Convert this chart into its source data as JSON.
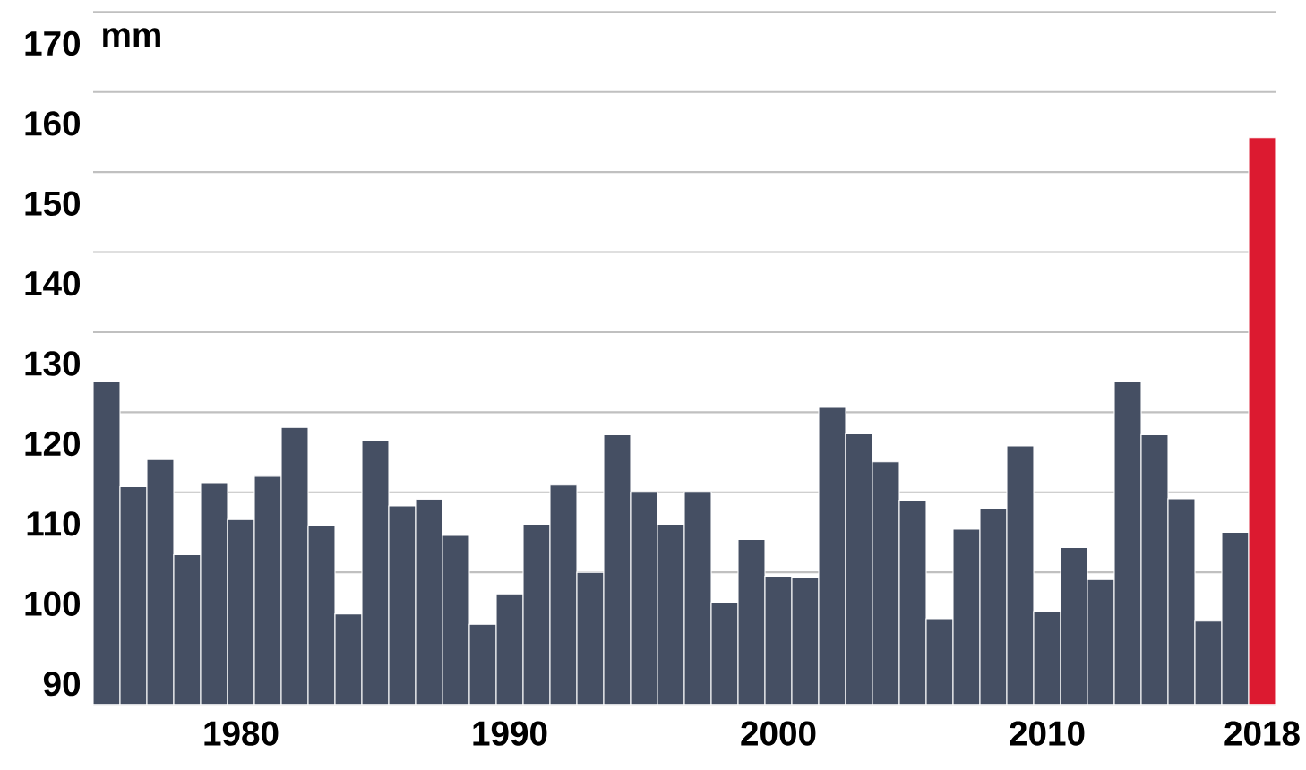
{
  "chart_data": {
    "type": "bar",
    "ylabel": "mm",
    "categories": [
      null,
      null,
      null,
      null,
      null,
      "1980",
      null,
      null,
      null,
      null,
      null,
      null,
      null,
      null,
      null,
      "1990",
      null,
      null,
      null,
      null,
      null,
      null,
      null,
      null,
      null,
      "2000",
      null,
      null,
      null,
      null,
      null,
      null,
      null,
      null,
      null,
      "2010",
      null,
      null,
      null,
      null,
      null,
      null,
      null,
      "2018"
    ],
    "values": [
      123.8,
      110.7,
      114.1,
      102.2,
      111.1,
      106.6,
      112.0,
      118.1,
      105.8,
      94.8,
      116.4,
      108.3,
      109.1,
      104.6,
      93.5,
      97.3,
      106.0,
      110.9,
      100.0,
      117.2,
      110.0,
      106.0,
      110.0,
      96.2,
      104.1,
      99.5,
      99.3,
      120.6,
      117.3,
      113.8,
      108.9,
      94.2,
      105.4,
      108.0,
      115.8,
      95.1,
      103.1,
      99.1,
      123.8,
      117.2,
      109.2,
      93.9,
      105.0,
      154.3
    ],
    "colors": [
      "#454f63",
      "#454f63",
      "#454f63",
      "#454f63",
      "#454f63",
      "#454f63",
      "#454f63",
      "#454f63",
      "#454f63",
      "#454f63",
      "#454f63",
      "#454f63",
      "#454f63",
      "#454f63",
      "#454f63",
      "#454f63",
      "#454f63",
      "#454f63",
      "#454f63",
      "#454f63",
      "#454f63",
      "#454f63",
      "#454f63",
      "#454f63",
      "#454f63",
      "#454f63",
      "#454f63",
      "#454f63",
      "#454f63",
      "#454f63",
      "#454f63",
      "#454f63",
      "#454f63",
      "#454f63",
      "#454f63",
      "#454f63",
      "#454f63",
      "#454f63",
      "#454f63",
      "#454f63",
      "#454f63",
      "#454f63",
      "#454f63",
      "#dc1a30"
    ],
    "ylim": [
      83.5,
      170
    ],
    "yticks": [
      90,
      100,
      110,
      120,
      130,
      140,
      150,
      160,
      170
    ],
    "grid": "y"
  }
}
